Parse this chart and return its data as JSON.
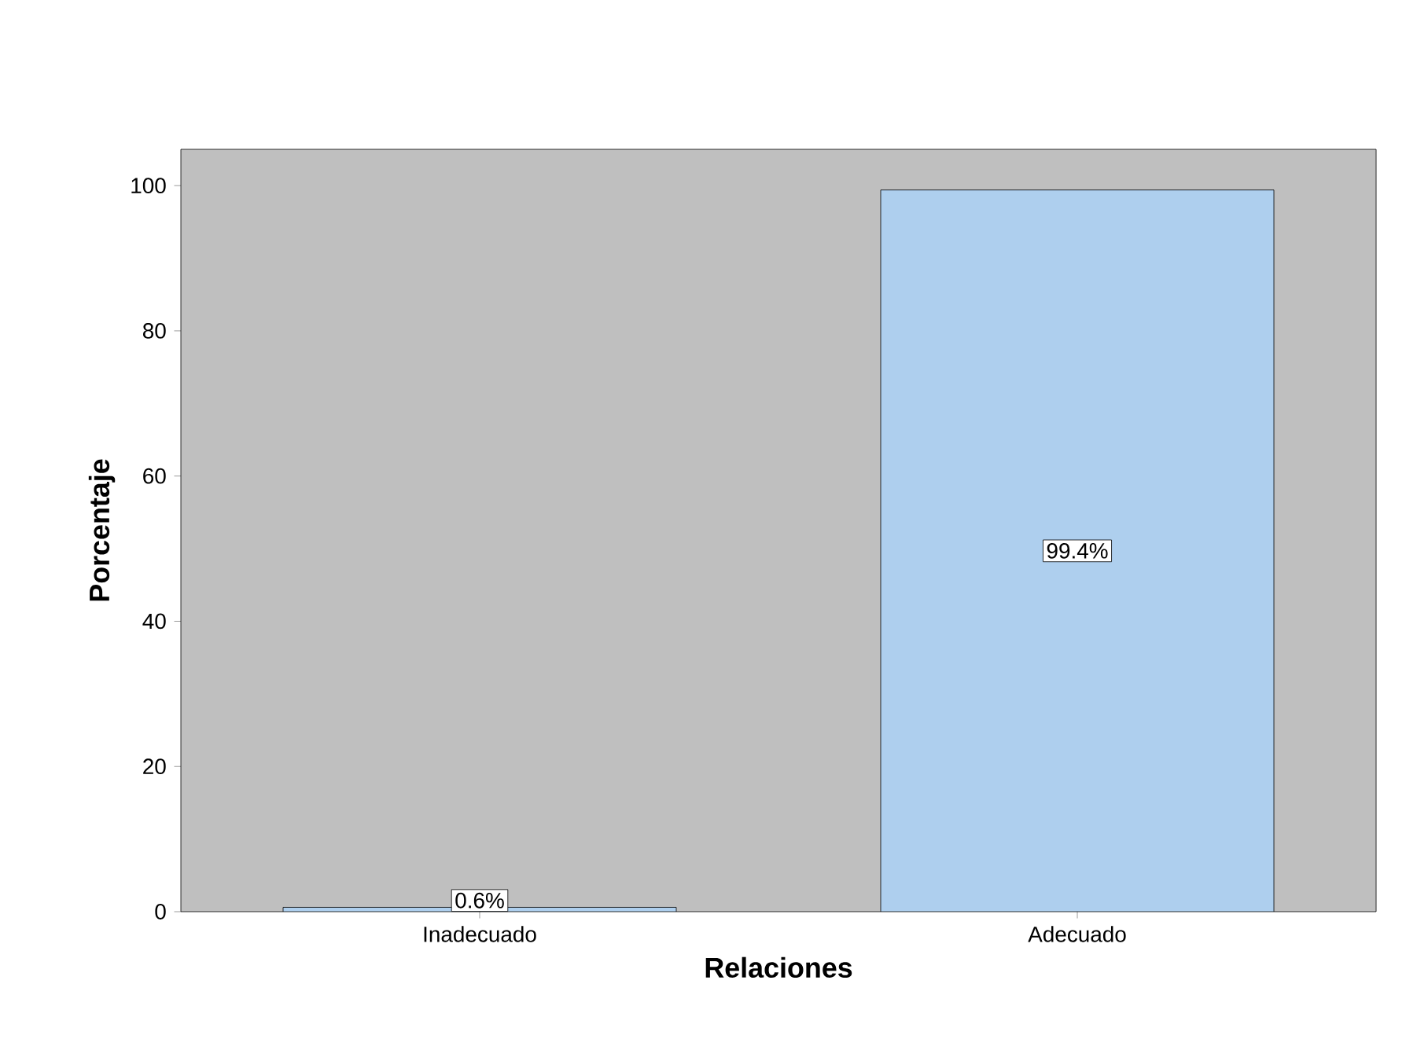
{
  "chart_data": {
    "type": "bar",
    "xlabel": "Relaciones",
    "ylabel": "Porcentaje",
    "categories": [
      "Inadecuado",
      "Adecuado"
    ],
    "values": [
      0.6,
      99.4
    ],
    "value_labels": [
      "0.6%",
      "99.4%"
    ],
    "color": "#aecfee",
    "ylim": [
      0,
      105
    ],
    "yticks": [
      0,
      20,
      40,
      60,
      80,
      100
    ]
  }
}
